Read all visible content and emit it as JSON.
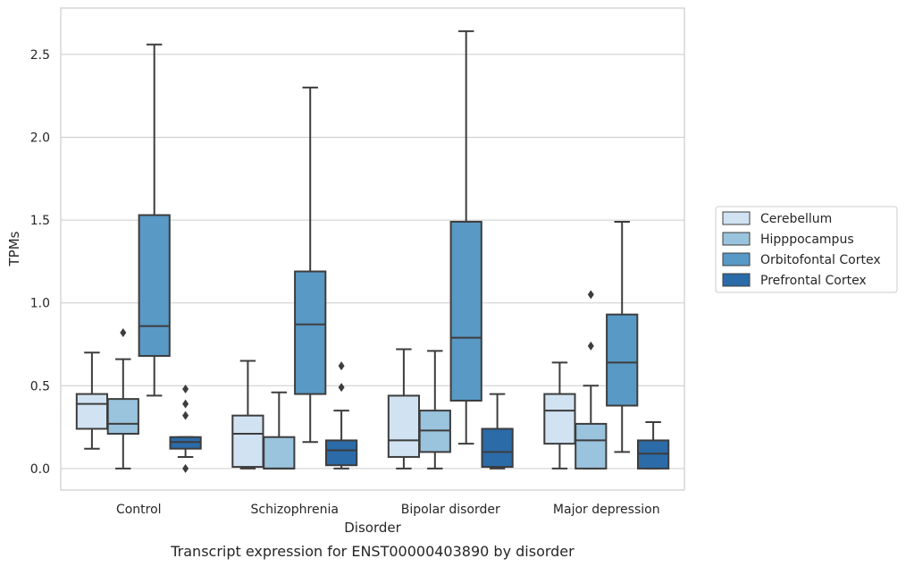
{
  "chart_data": {
    "type": "box",
    "title": "",
    "caption": "Transcript expression for ENST00000403890 by disorder",
    "xlabel": "Disorder",
    "ylabel": "TPMs",
    "ylim": [
      -0.13,
      2.78
    ],
    "yticks": [
      "0.0",
      "0.5",
      "1.0",
      "1.5",
      "2.0",
      "2.5"
    ],
    "grid": "horizontal",
    "legend_position": "right",
    "categories": [
      "Control",
      "Schizophrenia",
      "Bipolar disorder",
      "Major depression"
    ],
    "series": [
      {
        "name": "Cerebellum",
        "color": "#d1e2f2",
        "boxes": [
          {
            "whisker_low": 0.12,
            "q1": 0.24,
            "median": 0.39,
            "q3": 0.45,
            "whisker_high": 0.7,
            "outliers": []
          },
          {
            "whisker_low": 0.0,
            "q1": 0.01,
            "median": 0.21,
            "q3": 0.32,
            "whisker_high": 0.65,
            "outliers": []
          },
          {
            "whisker_low": 0.0,
            "q1": 0.07,
            "median": 0.17,
            "q3": 0.44,
            "whisker_high": 0.72,
            "outliers": []
          },
          {
            "whisker_low": 0.0,
            "q1": 0.15,
            "median": 0.35,
            "q3": 0.45,
            "whisker_high": 0.64,
            "outliers": []
          }
        ]
      },
      {
        "name": "Hipppocampus",
        "color": "#9ac3dd",
        "boxes": [
          {
            "whisker_low": 0.0,
            "q1": 0.21,
            "median": 0.27,
            "q3": 0.42,
            "whisker_high": 0.66,
            "outliers": [
              0.82
            ]
          },
          {
            "whisker_low": 0.0,
            "q1": 0.0,
            "median": 0.0,
            "q3": 0.19,
            "whisker_high": 0.46,
            "outliers": []
          },
          {
            "whisker_low": 0.0,
            "q1": 0.1,
            "median": 0.23,
            "q3": 0.35,
            "whisker_high": 0.71,
            "outliers": []
          },
          {
            "whisker_low": 0.0,
            "q1": 0.0,
            "median": 0.17,
            "q3": 0.27,
            "whisker_high": 0.5,
            "outliers": [
              0.74,
              1.05
            ]
          }
        ]
      },
      {
        "name": "Orbitofontal Cortex",
        "color": "#5899c6",
        "boxes": [
          {
            "whisker_low": 0.44,
            "q1": 0.68,
            "median": 0.86,
            "q3": 1.53,
            "whisker_high": 2.56,
            "outliers": []
          },
          {
            "whisker_low": 0.16,
            "q1": 0.45,
            "median": 0.87,
            "q3": 1.19,
            "whisker_high": 2.3,
            "outliers": []
          },
          {
            "whisker_low": 0.15,
            "q1": 0.41,
            "median": 0.79,
            "q3": 1.49,
            "whisker_high": 2.64,
            "outliers": []
          },
          {
            "whisker_low": 0.1,
            "q1": 0.38,
            "median": 0.64,
            "q3": 0.93,
            "whisker_high": 1.49,
            "outliers": []
          }
        ]
      },
      {
        "name": "Prefrontal Cortex",
        "color": "#2b6ba8",
        "boxes": [
          {
            "whisker_low": 0.07,
            "q1": 0.12,
            "median": 0.16,
            "q3": 0.19,
            "whisker_high": 0.19,
            "outliers": [
              0.0,
              0.32,
              0.39,
              0.48
            ]
          },
          {
            "whisker_low": 0.0,
            "q1": 0.02,
            "median": 0.11,
            "q3": 0.17,
            "whisker_high": 0.35,
            "outliers": [
              0.49,
              0.62
            ]
          },
          {
            "whisker_low": 0.0,
            "q1": 0.01,
            "median": 0.1,
            "q3": 0.24,
            "whisker_high": 0.45,
            "outliers": []
          },
          {
            "whisker_low": 0.0,
            "q1": 0.0,
            "median": 0.09,
            "q3": 0.17,
            "whisker_high": 0.28,
            "outliers": []
          }
        ]
      }
    ]
  }
}
